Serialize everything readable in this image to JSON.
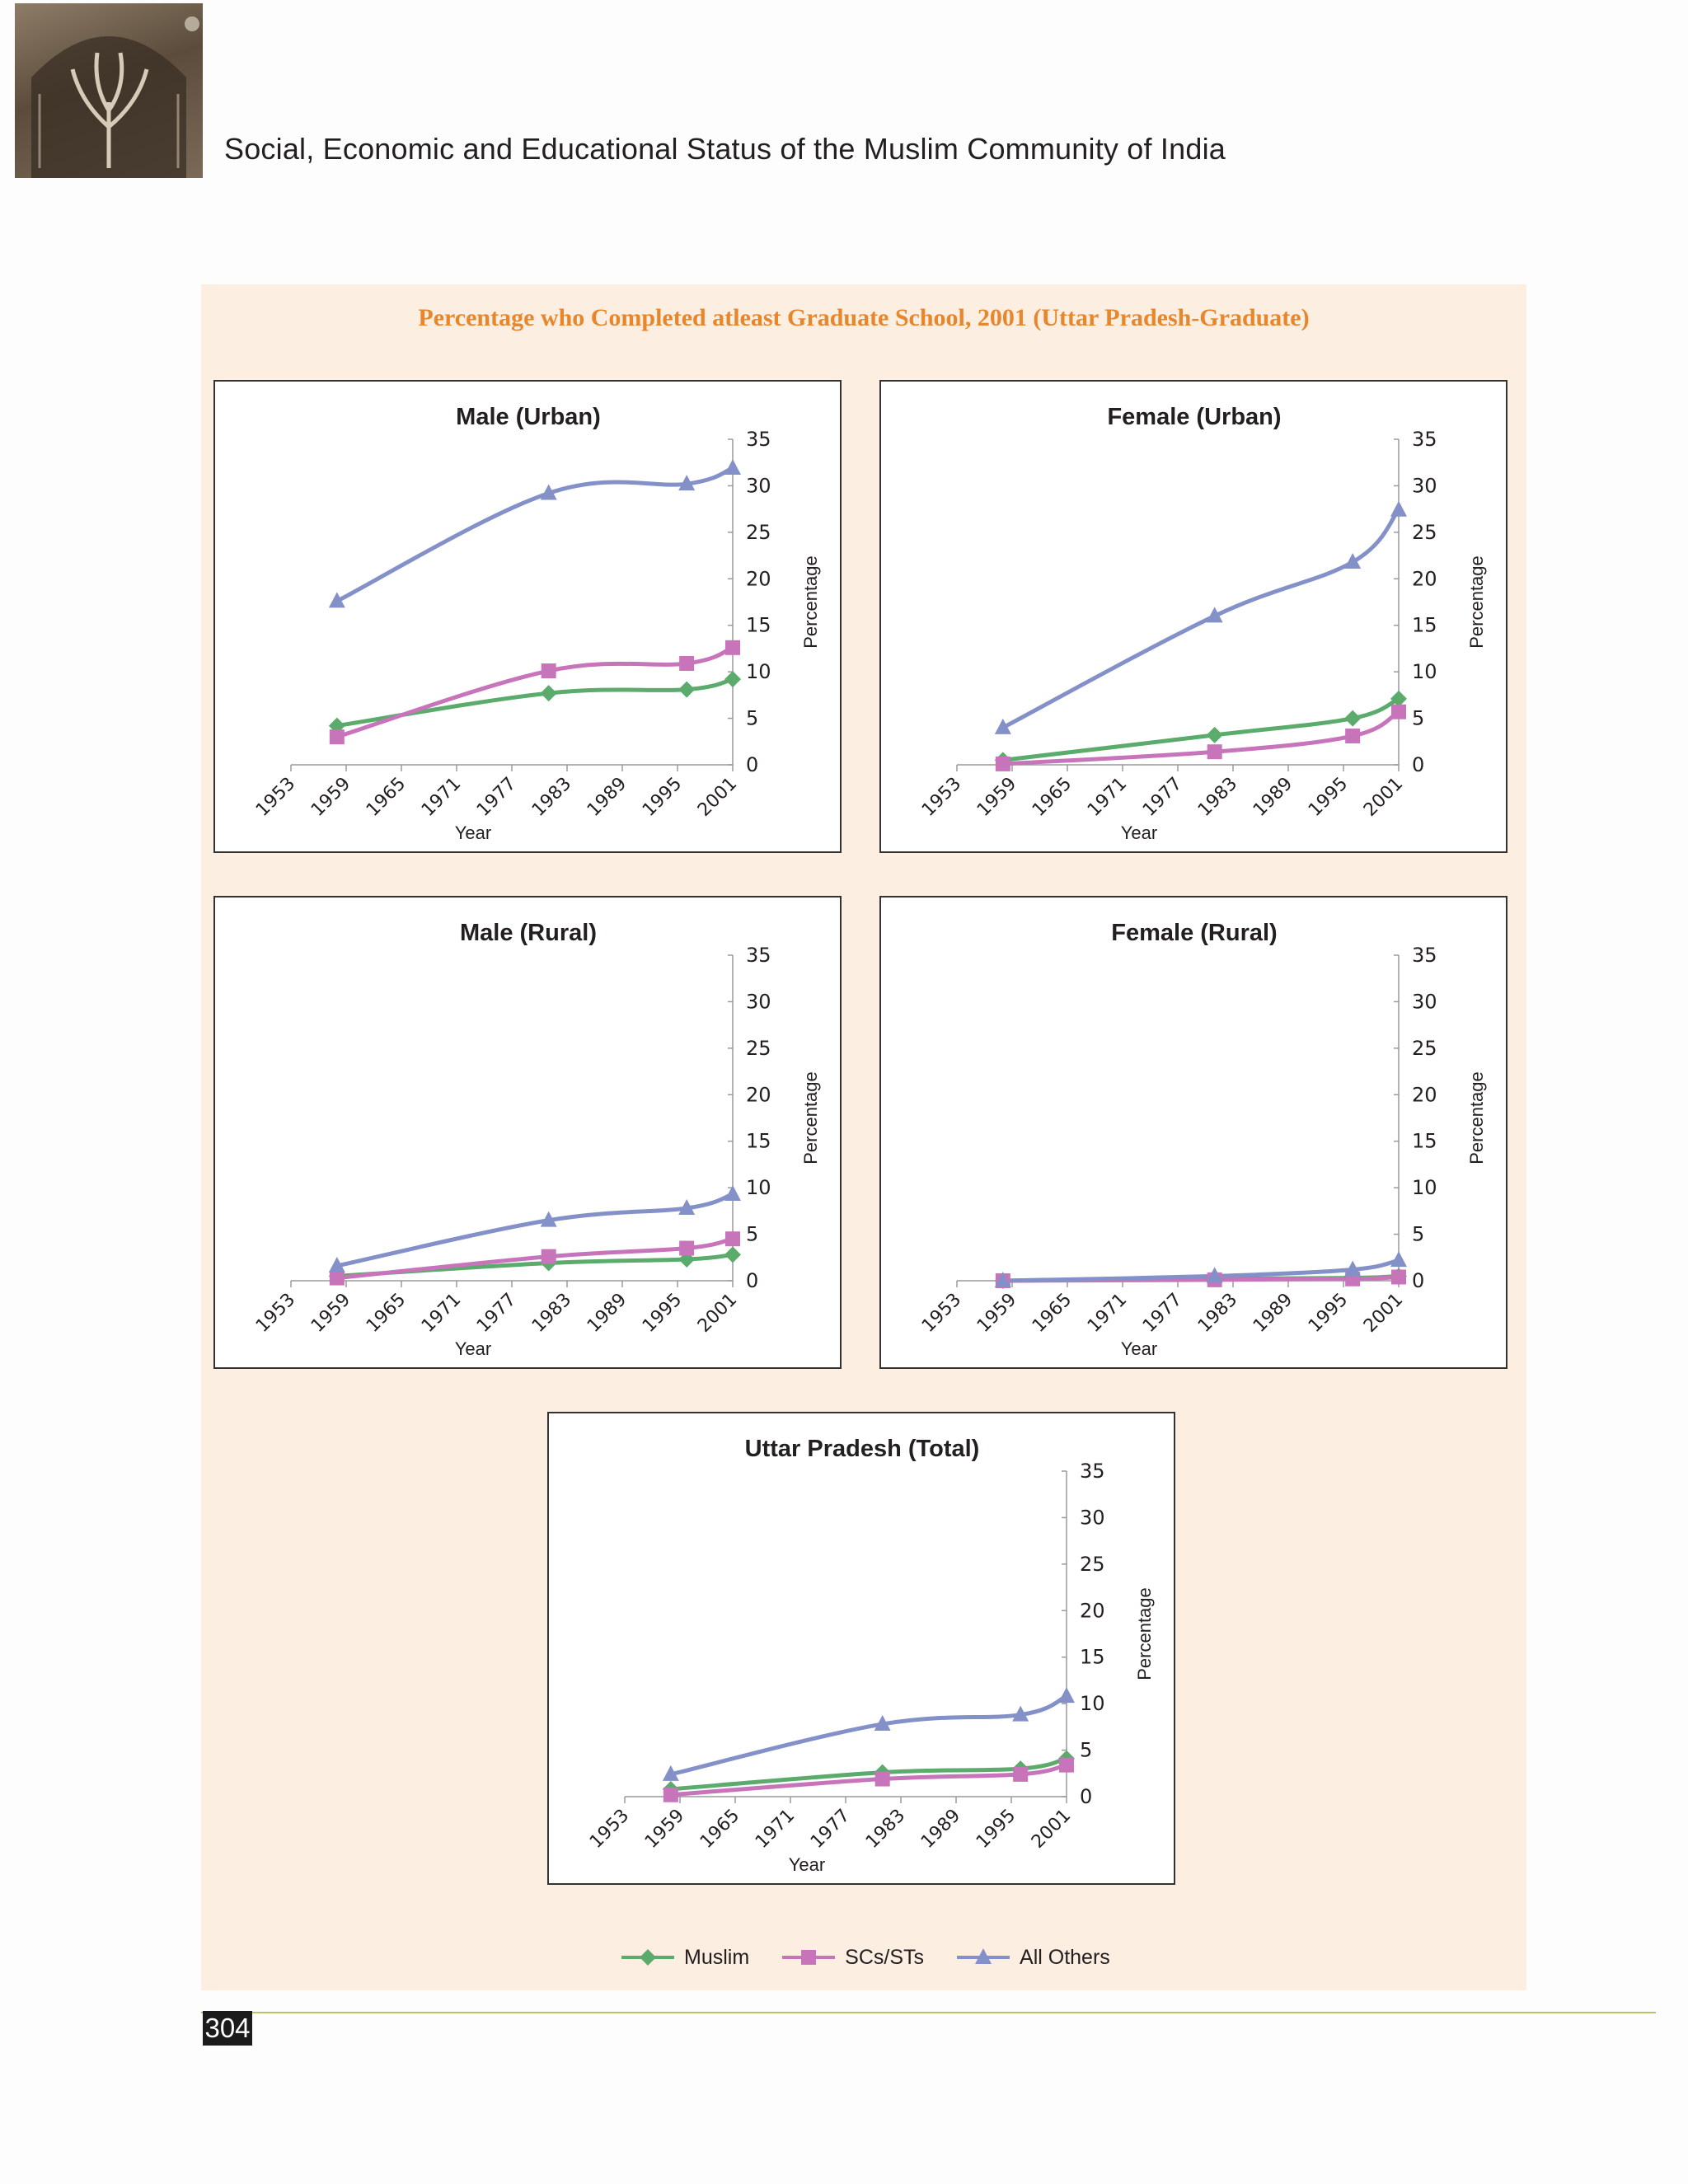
{
  "page_header": "Social, Economic and Educational Status of the Muslim Community of India",
  "page_number": "304",
  "figure_title": "Percentage who Completed atleast Graduate School, 2001 (Uttar Pradesh-Graduate)",
  "legend": [
    {
      "name": "Muslim",
      "color": "#5aab6c",
      "marker": "diamond"
    },
    {
      "name": "SCs/STs",
      "color": "#c774bb",
      "marker": "square"
    },
    {
      "name": "All Others",
      "color": "#8491c9",
      "marker": "triangle"
    }
  ],
  "chart_data": [
    {
      "type": "line",
      "title": "Male (Urban)",
      "xlabel": "Year",
      "ylabel": "Percentage",
      "x_ticks": [
        "1953",
        "1959",
        "1965",
        "1971",
        "1977",
        "1983",
        "1989",
        "1995",
        "2001"
      ],
      "xlim": [
        1953,
        2001
      ],
      "ylim": [
        0,
        35
      ],
      "y_ticks": [
        0,
        5,
        10,
        15,
        20,
        25,
        30,
        35
      ],
      "series": [
        {
          "name": "Muslim",
          "x": [
            1958,
            1981,
            1996,
            2001
          ],
          "values": [
            4.2,
            7.7,
            8.1,
            9.2
          ]
        },
        {
          "name": "SCs/STs",
          "x": [
            1958,
            1981,
            1996,
            2001
          ],
          "values": [
            3.0,
            10.1,
            10.9,
            12.6
          ]
        },
        {
          "name": "All Others",
          "x": [
            1958,
            1981,
            1996,
            2001
          ],
          "values": [
            17.6,
            29.2,
            30.2,
            31.9
          ]
        }
      ]
    },
    {
      "type": "line",
      "title": "Female (Urban)",
      "xlabel": "Year",
      "ylabel": "Percentage",
      "x_ticks": [
        "1953",
        "1959",
        "1965",
        "1971",
        "1977",
        "1983",
        "1989",
        "1995",
        "2001"
      ],
      "xlim": [
        1953,
        2001
      ],
      "ylim": [
        0,
        35
      ],
      "y_ticks": [
        0,
        5,
        10,
        15,
        20,
        25,
        30,
        35
      ],
      "series": [
        {
          "name": "Muslim",
          "x": [
            1958,
            1981,
            1996,
            2001
          ],
          "values": [
            0.5,
            3.2,
            5.0,
            7.1
          ]
        },
        {
          "name": "SCs/STs",
          "x": [
            1958,
            1981,
            1996,
            2001
          ],
          "values": [
            0.1,
            1.4,
            3.1,
            5.7
          ]
        },
        {
          "name": "All Others",
          "x": [
            1958,
            1981,
            1996,
            2001
          ],
          "values": [
            4.0,
            16.0,
            21.8,
            27.4
          ]
        }
      ]
    },
    {
      "type": "line",
      "title": "Male (Rural)",
      "xlabel": "Year",
      "ylabel": "Percentage",
      "x_ticks": [
        "1953",
        "1959",
        "1965",
        "1971",
        "1977",
        "1983",
        "1989",
        "1995",
        "2001"
      ],
      "xlim": [
        1953,
        2001
      ],
      "ylim": [
        0,
        35
      ],
      "y_ticks": [
        0,
        5,
        10,
        15,
        20,
        25,
        30,
        35
      ],
      "series": [
        {
          "name": "Muslim",
          "x": [
            1958,
            1981,
            1996,
            2001
          ],
          "values": [
            0.5,
            1.9,
            2.3,
            2.8
          ]
        },
        {
          "name": "SCs/STs",
          "x": [
            1958,
            1981,
            1996,
            2001
          ],
          "values": [
            0.3,
            2.6,
            3.5,
            4.5
          ]
        },
        {
          "name": "All Others",
          "x": [
            1958,
            1981,
            1996,
            2001
          ],
          "values": [
            1.6,
            6.5,
            7.8,
            9.3
          ]
        }
      ]
    },
    {
      "type": "line",
      "title": "Female (Rural)",
      "xlabel": "Year",
      "ylabel": "Percentage",
      "x_ticks": [
        "1953",
        "1959",
        "1965",
        "1971",
        "1977",
        "1983",
        "1989",
        "1995",
        "2001"
      ],
      "xlim": [
        1953,
        2001
      ],
      "ylim": [
        0,
        35
      ],
      "y_ticks": [
        0,
        5,
        10,
        15,
        20,
        25,
        30,
        35
      ],
      "series": [
        {
          "name": "Muslim",
          "x": [
            1958,
            1981,
            1996,
            2001
          ],
          "values": [
            0.0,
            0.2,
            0.3,
            0.5
          ]
        },
        {
          "name": "SCs/STs",
          "x": [
            1958,
            1981,
            1996,
            2001
          ],
          "values": [
            0.0,
            0.1,
            0.2,
            0.4
          ]
        },
        {
          "name": "All Others",
          "x": [
            1958,
            1981,
            1996,
            2001
          ],
          "values": [
            0.0,
            0.5,
            1.2,
            2.2
          ]
        }
      ]
    },
    {
      "type": "line",
      "title": "Uttar Pradesh (Total)",
      "xlabel": "Year",
      "ylabel": "Percentage",
      "x_ticks": [
        "1953",
        "1959",
        "1965",
        "1971",
        "1977",
        "1983",
        "1989",
        "1995",
        "2001"
      ],
      "xlim": [
        1953,
        2001
      ],
      "ylim": [
        0,
        35
      ],
      "y_ticks": [
        0,
        5,
        10,
        15,
        20,
        25,
        30,
        35
      ],
      "series": [
        {
          "name": "Muslim",
          "x": [
            1958,
            1981,
            1996,
            2001
          ],
          "values": [
            0.8,
            2.6,
            3.0,
            4.1
          ]
        },
        {
          "name": "SCs/STs",
          "x": [
            1958,
            1981,
            1996,
            2001
          ],
          "values": [
            0.2,
            1.9,
            2.4,
            3.4
          ]
        },
        {
          "name": "All Others",
          "x": [
            1958,
            1981,
            1996,
            2001
          ],
          "values": [
            2.4,
            7.8,
            8.8,
            10.8
          ]
        }
      ]
    }
  ]
}
